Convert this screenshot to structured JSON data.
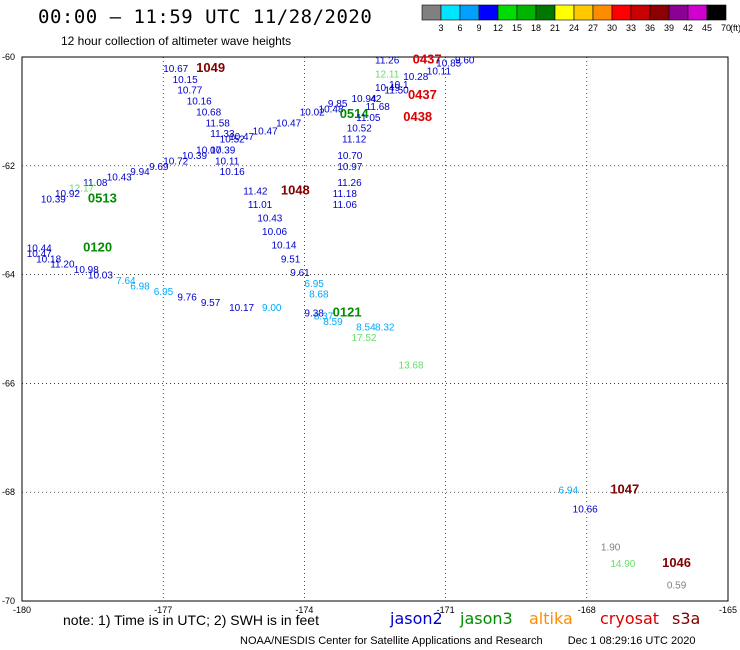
{
  "header": {
    "title": "00:00 – 11:59 UTC 11/28/2020",
    "subtitle": "12 hour collection of altimeter wave heights"
  },
  "legend": {
    "labels": [
      "3",
      "6",
      "9",
      "12",
      "15",
      "18",
      "21",
      "24",
      "27",
      "30",
      "33",
      "36",
      "39",
      "42",
      "45",
      "70"
    ],
    "unit": "(ft)",
    "colors": [
      "#808080",
      "#00e5ff",
      "#00a0ff",
      "#0000ff",
      "#00dc00",
      "#00b400",
      "#007800",
      "#ffff00",
      "#ffc800",
      "#ff8c00",
      "#ff0000",
      "#c80000",
      "#8c0000",
      "#8c0096",
      "#d000d0",
      "#000000"
    ]
  },
  "axes": {
    "x_ticks": [
      "-180",
      "-177",
      "-174",
      "-171",
      "-168",
      "-165"
    ],
    "y_ticks": [
      "-60",
      "-62",
      "-64",
      "-66",
      "-68",
      "-70"
    ],
    "lon_range": [
      -180,
      -165
    ],
    "lat_range": [
      -70,
      -60
    ]
  },
  "footer": {
    "note": "note: 1) Time is in UTC; 2) SWH is in feet",
    "satellites": [
      {
        "name": "jason2",
        "color": "#0000cc"
      },
      {
        "name": "jason3",
        "color": "#008c00"
      },
      {
        "name": "altika",
        "color": "#ff8c00"
      },
      {
        "name": "cryosat",
        "color": "#dd0000"
      },
      {
        "name": "s3a",
        "color": "#800000"
      }
    ],
    "credit": "NOAA/NESDIS Center for Satellite Applications and Research",
    "timestamp": "Dec  1 08:29:16 UTC 2020"
  },
  "observations": [
    {
      "lon": -176.3,
      "lat": -60.2,
      "text": "1049",
      "color": "#800000",
      "size": 13,
      "bold": true
    },
    {
      "lon": -177.0,
      "lat": -60.2,
      "text": "10.67",
      "color": "#0000cc"
    },
    {
      "lon": -176.8,
      "lat": -60.4,
      "text": "10.15",
      "color": "#0000cc"
    },
    {
      "lon": -176.7,
      "lat": -60.6,
      "text": "10.77",
      "color": "#0000cc"
    },
    {
      "lon": -176.5,
      "lat": -60.8,
      "text": "10.16",
      "color": "#0000cc"
    },
    {
      "lon": -176.3,
      "lat": -61.0,
      "text": "10.68",
      "color": "#0000cc"
    },
    {
      "lon": -176.1,
      "lat": -61.2,
      "text": "11.58",
      "color": "#0000cc"
    },
    {
      "lon": -176.0,
      "lat": -61.4,
      "text": "11.33",
      "color": "#0000cc"
    },
    {
      "lon": -175.6,
      "lat": -61.45,
      "text": "10.47",
      "color": "#0000cc"
    },
    {
      "lon": -175.8,
      "lat": -61.5,
      "text": "10.52",
      "color": "#0000cc"
    },
    {
      "lon": -176.3,
      "lat": -61.7,
      "text": "10.07",
      "color": "#0000cc"
    },
    {
      "lon": -176.0,
      "lat": -61.7,
      "text": "10.39",
      "color": "#0000cc"
    },
    {
      "lon": -176.6,
      "lat": -61.8,
      "text": "10.39",
      "color": "#0000cc"
    },
    {
      "lon": -175.9,
      "lat": -61.9,
      "text": "10.11",
      "color": "#0000cc"
    },
    {
      "lon": -177.0,
      "lat": -61.9,
      "text": "10.72",
      "color": "#0000cc"
    },
    {
      "lon": -175.8,
      "lat": -62.1,
      "text": "10.16",
      "color": "#0000cc"
    },
    {
      "lon": -177.3,
      "lat": -62.0,
      "text": "9.69",
      "color": "#0000cc"
    },
    {
      "lon": -177.7,
      "lat": -62.1,
      "text": "9.94",
      "color": "#0000cc"
    },
    {
      "lon": -178.2,
      "lat": -62.2,
      "text": "10.43",
      "color": "#0000cc"
    },
    {
      "lon": -178.7,
      "lat": -62.3,
      "text": "11.08",
      "color": "#0000cc"
    },
    {
      "lon": -179.0,
      "lat": -62.4,
      "text": "12.17",
      "color": "#66dd66"
    },
    {
      "lon": -179.3,
      "lat": -62.5,
      "text": "10.92",
      "color": "#0000cc"
    },
    {
      "lon": -178.6,
      "lat": -62.6,
      "text": "0513",
      "color": "#008c00",
      "size": 13,
      "bold": true
    },
    {
      "lon": -179.6,
      "lat": -62.6,
      "text": "10.39",
      "color": "#0000cc"
    },
    {
      "lon": -175.1,
      "lat": -61.35,
      "text": "10.47",
      "color": "#0000cc"
    },
    {
      "lon": -174.6,
      "lat": -61.2,
      "text": "10.47",
      "color": "#0000cc"
    },
    {
      "lon": -174.1,
      "lat": -61.0,
      "text": "10.02",
      "color": "#0000cc"
    },
    {
      "lon": -173.7,
      "lat": -60.95,
      "text": "10.48",
      "color": "#0000cc"
    },
    {
      "lon": -173.5,
      "lat": -60.85,
      "text": "9.85",
      "color": "#0000cc"
    },
    {
      "lon": -173.25,
      "lat": -61.05,
      "text": "0514",
      "color": "#008c00",
      "size": 13,
      "bold": true
    },
    {
      "lon": -173.0,
      "lat": -60.75,
      "text": "10.94",
      "color": "#0000cc"
    },
    {
      "lon": -172.6,
      "lat": -60.75,
      "text": "42",
      "color": "#0000cc"
    },
    {
      "lon": -172.7,
      "lat": -60.9,
      "text": "11.68",
      "color": "#0000cc"
    },
    {
      "lon": -172.5,
      "lat": -60.55,
      "text": "10.49",
      "color": "#0000cc"
    },
    {
      "lon": -172.2,
      "lat": -60.5,
      "text": "10.1",
      "color": "#0000cc"
    },
    {
      "lon": -172.3,
      "lat": -60.6,
      "text": "11.50",
      "color": "#0000cc"
    },
    {
      "lon": -172.5,
      "lat": -60.3,
      "text": "12.11",
      "color": "#66dd66"
    },
    {
      "lon": -172.5,
      "lat": -60.05,
      "text": "11.26",
      "color": "#0000cc"
    },
    {
      "lon": -171.7,
      "lat": -60.05,
      "text": "0437",
      "color": "#dd0000",
      "size": 13,
      "bold": true
    },
    {
      "lon": -171.4,
      "lat": -60.25,
      "text": "10.11",
      "color": "#0000cc"
    },
    {
      "lon": -171.2,
      "lat": -60.1,
      "text": "10.85",
      "color": "#0000cc"
    },
    {
      "lon": -170.8,
      "lat": -60.05,
      "text": "9.60",
      "color": "#0000cc"
    },
    {
      "lon": -171.9,
      "lat": -60.35,
      "text": "10.28",
      "color": "#0000cc"
    },
    {
      "lon": -171.8,
      "lat": -60.7,
      "text": "0437",
      "color": "#dd0000",
      "size": 13,
      "bold": true
    },
    {
      "lon": -172.9,
      "lat": -61.1,
      "text": "11.05",
      "color": "#0000cc"
    },
    {
      "lon": -171.9,
      "lat": -61.1,
      "text": "0438",
      "color": "#dd0000",
      "size": 13,
      "bold": true
    },
    {
      "lon": -173.1,
      "lat": -61.3,
      "text": "10.52",
      "color": "#0000cc"
    },
    {
      "lon": -173.2,
      "lat": -61.5,
      "text": "11.12",
      "color": "#0000cc"
    },
    {
      "lon": -173.3,
      "lat": -61.8,
      "text": "10.70",
      "color": "#0000cc"
    },
    {
      "lon": -173.3,
      "lat": -62.0,
      "text": "10.97",
      "color": "#0000cc"
    },
    {
      "lon": -173.3,
      "lat": -62.3,
      "text": "11.26",
      "color": "#0000cc"
    },
    {
      "lon": -173.4,
      "lat": -62.5,
      "text": "11.18",
      "color": "#0000cc"
    },
    {
      "lon": -173.4,
      "lat": -62.7,
      "text": "11.06",
      "color": "#0000cc"
    },
    {
      "lon": -174.5,
      "lat": -62.45,
      "text": "1048",
      "color": "#800000",
      "size": 13,
      "bold": true
    },
    {
      "lon": -175.3,
      "lat": -62.45,
      "text": "11.42",
      "color": "#0000cc"
    },
    {
      "lon": -175.2,
      "lat": -62.7,
      "text": "11.01",
      "color": "#0000cc"
    },
    {
      "lon": -175.0,
      "lat": -62.95,
      "text": "10.43",
      "color": "#0000cc"
    },
    {
      "lon": -174.9,
      "lat": -63.2,
      "text": "10.06",
      "color": "#0000cc"
    },
    {
      "lon": -174.7,
      "lat": -63.45,
      "text": "10.14",
      "color": "#0000cc"
    },
    {
      "lon": -174.5,
      "lat": -63.7,
      "text": "9.51",
      "color": "#0000cc"
    },
    {
      "lon": -174.3,
      "lat": -63.95,
      "text": "9.61",
      "color": "#0000cc"
    },
    {
      "lon": -174.0,
      "lat": -64.15,
      "text": "6.95",
      "color": "#00aaff"
    },
    {
      "lon": -173.9,
      "lat": -64.35,
      "text": "8.68",
      "color": "#00aaff"
    },
    {
      "lon": -173.4,
      "lat": -64.7,
      "text": "0121",
      "color": "#008c00",
      "size": 13,
      "bold": true
    },
    {
      "lon": -173.8,
      "lat": -64.75,
      "text": "8.37",
      "color": "#00aaff"
    },
    {
      "lon": -173.6,
      "lat": -64.85,
      "text": "8.59",
      "color": "#00aaff"
    },
    {
      "lon": -172.5,
      "lat": -64.95,
      "text": "8.32",
      "color": "#00aaff"
    },
    {
      "lon": -172.9,
      "lat": -64.95,
      "text": "8.54",
      "color": "#00aaff"
    },
    {
      "lon": -173.0,
      "lat": -65.15,
      "text": "17.52",
      "color": "#66dd66"
    },
    {
      "lon": -172.0,
      "lat": -65.65,
      "text": "13.68",
      "color": "#66dd66"
    },
    {
      "lon": -174.0,
      "lat": -64.7,
      "text": "9.38",
      "color": "#0000cc"
    },
    {
      "lon": -174.9,
      "lat": -64.6,
      "text": "9.00",
      "color": "#00aaff"
    },
    {
      "lon": -175.6,
      "lat": -64.6,
      "text": "10.17",
      "color": "#0000cc"
    },
    {
      "lon": -176.2,
      "lat": -64.5,
      "text": "9.57",
      "color": "#0000cc"
    },
    {
      "lon": -176.7,
      "lat": -64.4,
      "text": "9.76",
      "color": "#0000cc"
    },
    {
      "lon": -177.2,
      "lat": -64.3,
      "text": "6.95",
      "color": "#00aaff"
    },
    {
      "lon": -177.7,
      "lat": -64.2,
      "text": "6.98",
      "color": "#00aaff"
    },
    {
      "lon": -178.0,
      "lat": -64.1,
      "text": "7.64",
      "color": "#00aaff"
    },
    {
      "lon": -178.6,
      "lat": -64.0,
      "text": "10.03",
      "color": "#0000cc"
    },
    {
      "lon": -178.9,
      "lat": -63.9,
      "text": "10.98",
      "color": "#0000cc"
    },
    {
      "lon": -179.4,
      "lat": -63.8,
      "text": "11.20",
      "color": "#0000cc"
    },
    {
      "lon": -179.7,
      "lat": -63.7,
      "text": "10.18",
      "color": "#0000cc"
    },
    {
      "lon": -179.9,
      "lat": -63.6,
      "text": "10.47",
      "color": "#0000cc"
    },
    {
      "lon": -179.9,
      "lat": -63.5,
      "text": "10.44",
      "color": "#0000cc"
    },
    {
      "lon": -178.7,
      "lat": -63.5,
      "text": "0120",
      "color": "#008c00",
      "size": 13,
      "bold": true
    },
    {
      "lon": -168.6,
      "lat": -67.95,
      "text": "6.94",
      "color": "#00aaff"
    },
    {
      "lon": -167.5,
      "lat": -67.95,
      "text": "1047",
      "color": "#800000",
      "size": 13,
      "bold": true
    },
    {
      "lon": -168.3,
      "lat": -68.3,
      "text": "10.66",
      "color": "#0000cc"
    },
    {
      "lon": -167.7,
      "lat": -69.0,
      "text": "1.90",
      "color": "#808080"
    },
    {
      "lon": -167.5,
      "lat": -69.3,
      "text": "14.90",
      "color": "#66dd66"
    },
    {
      "lon": -166.4,
      "lat": -69.3,
      "text": "1046",
      "color": "#800000",
      "size": 13,
      "bold": true
    },
    {
      "lon": -166.3,
      "lat": -69.7,
      "text": "0.59",
      "color": "#808080"
    }
  ]
}
